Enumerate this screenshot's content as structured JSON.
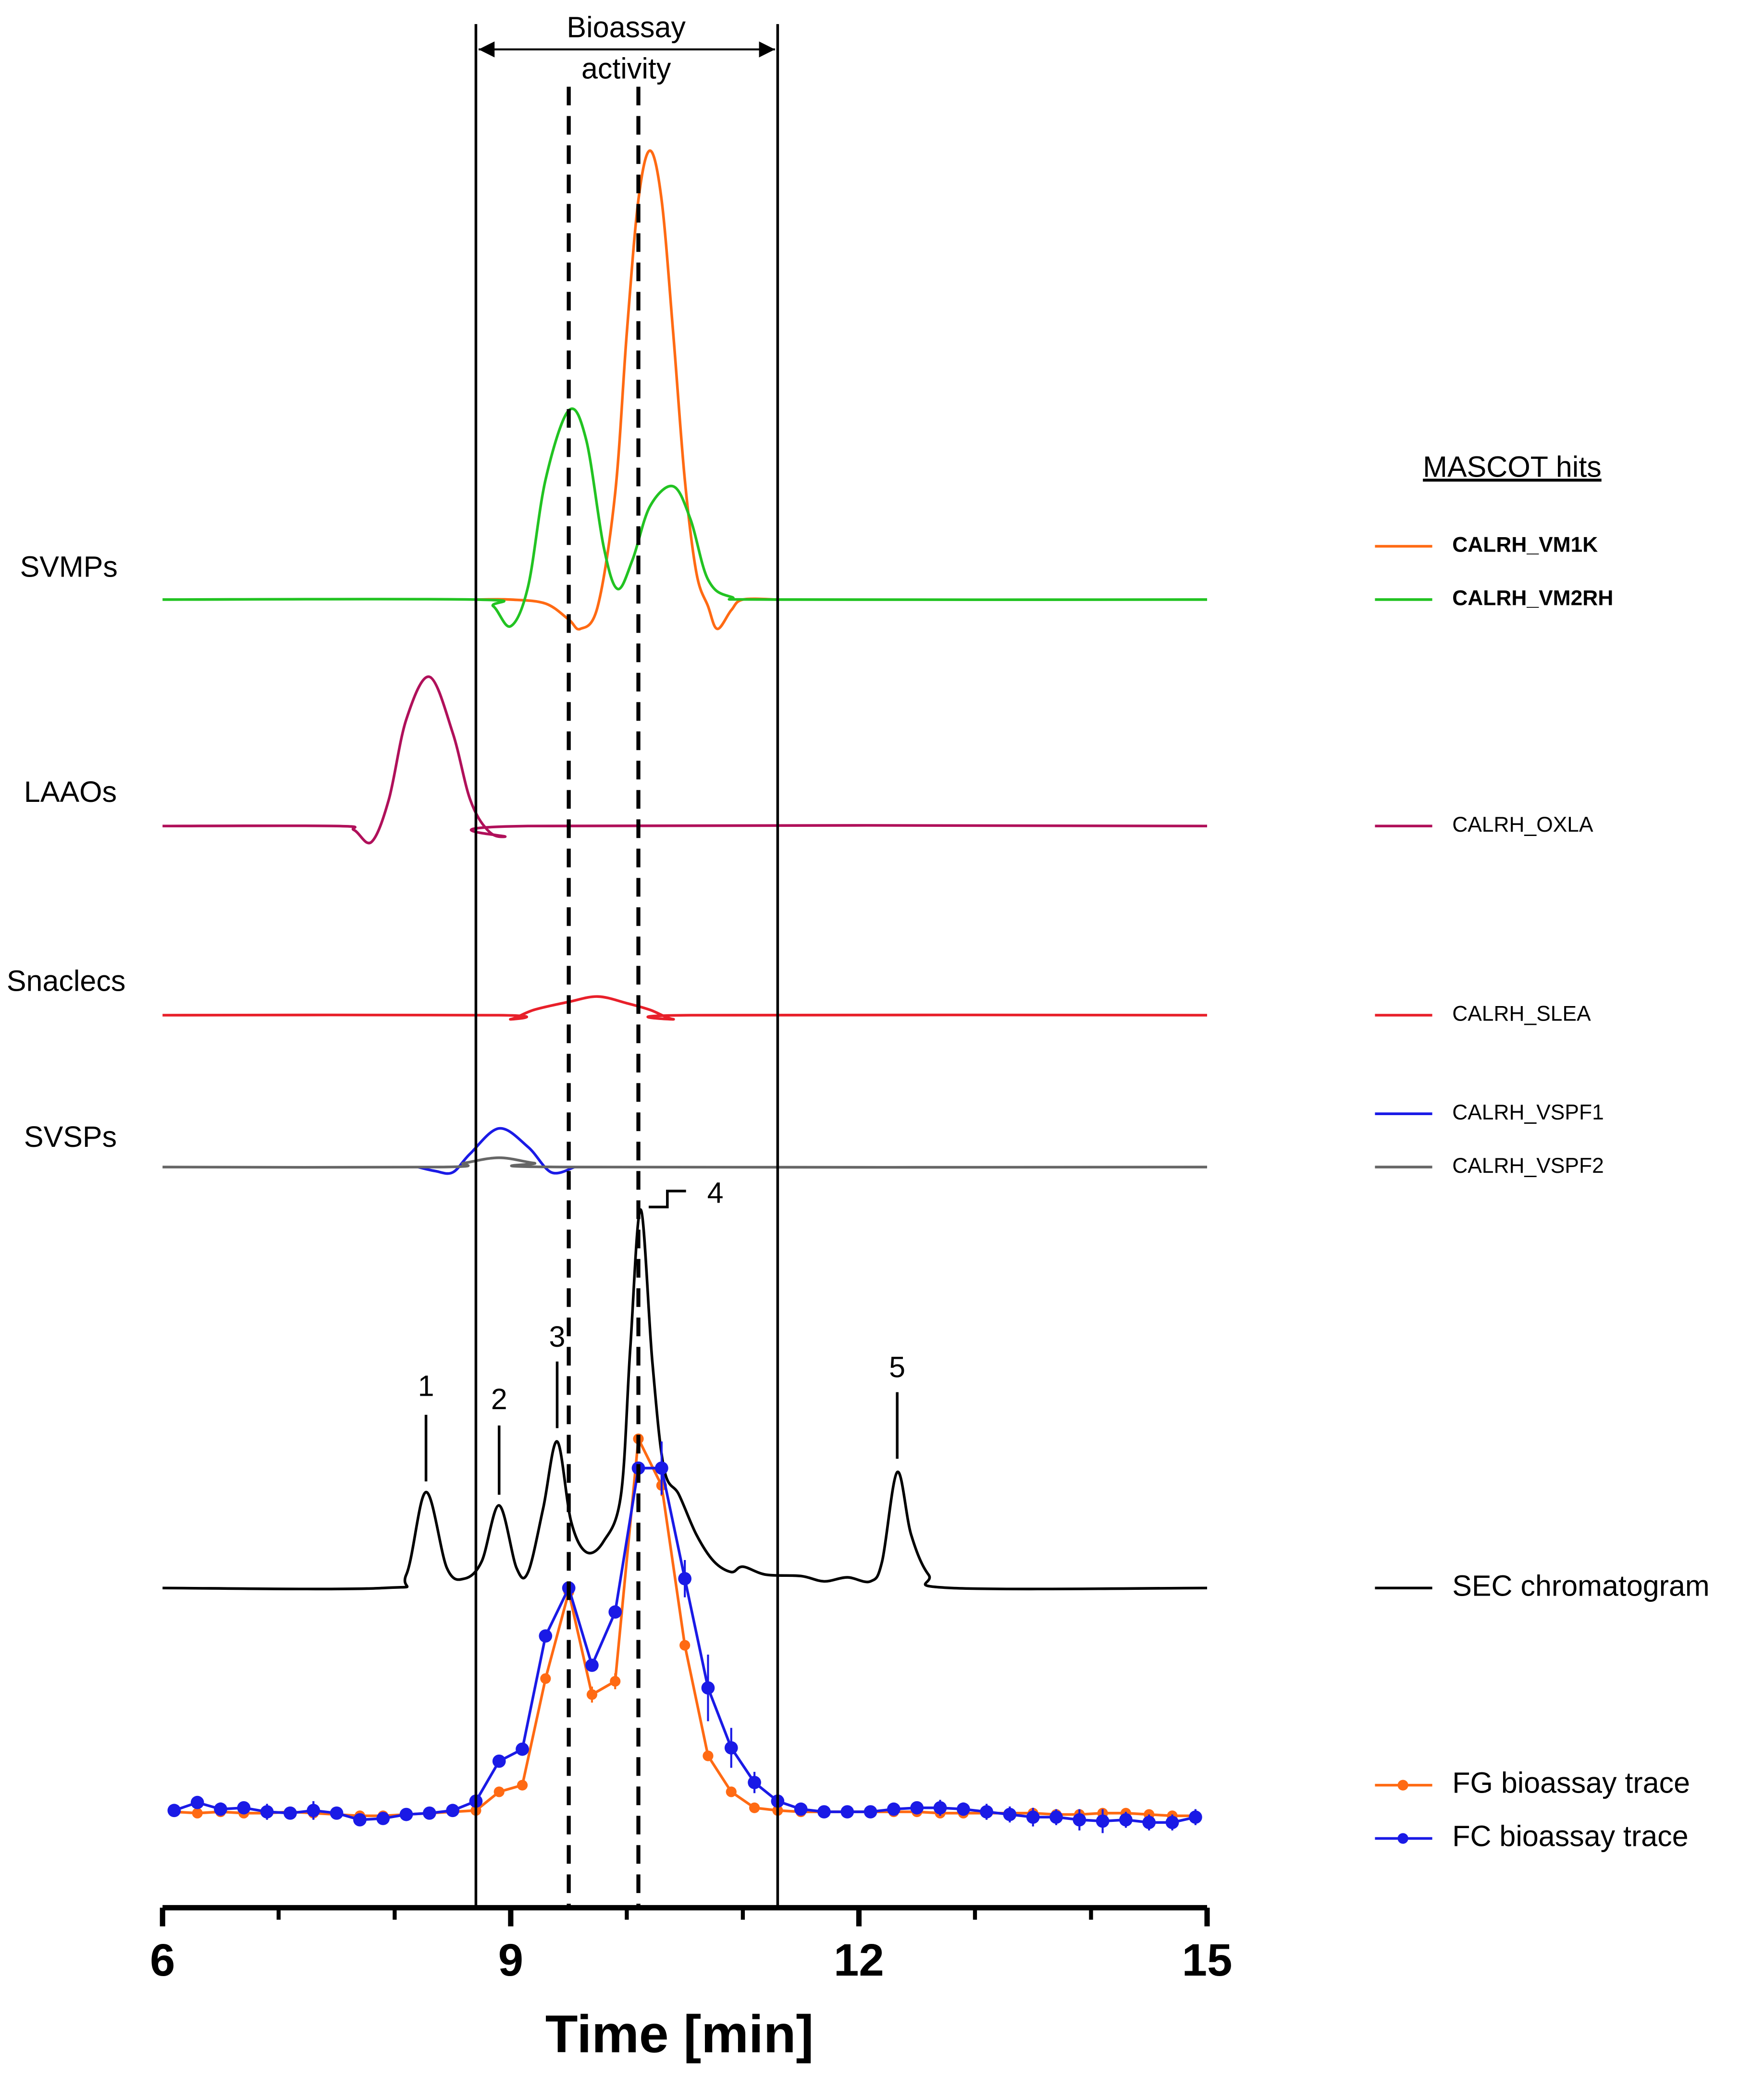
{
  "chart_data": {
    "type": "line",
    "xlabel": "Time [min]",
    "xlim": [
      6,
      15
    ],
    "xticks": [
      6,
      9,
      12,
      15
    ],
    "xminor_ticks": [
      7,
      8,
      10,
      11,
      13,
      14
    ],
    "annotation": [
      "Bioassay",
      "activity"
    ],
    "legend_title": "MASCOT hits",
    "vlines": [
      {
        "x": 8.7,
        "style": "solid"
      },
      {
        "x": 11.3,
        "style": "solid"
      },
      {
        "x": 9.5,
        "style": "dashed"
      },
      {
        "x": 10.1,
        "style": "dashed"
      }
    ],
    "peak_labels": [
      {
        "label": "1",
        "x": 8.27
      },
      {
        "label": "2",
        "x": 8.9
      },
      {
        "label": "3",
        "x": 9.4
      },
      {
        "label": "4",
        "x": 10.12
      },
      {
        "label": "5",
        "x": 12.33
      }
    ],
    "groups": [
      {
        "label": "SVMPs",
        "series": [
          {
            "name": "CALRH_VM1K",
            "color": "#ff6a13",
            "bold": true,
            "x": [
              8.7,
              9.0,
              9.3,
              9.5,
              9.6,
              9.75,
              9.9,
              10.0,
              10.1,
              10.2,
              10.3,
              10.4,
              10.5,
              10.6,
              10.7,
              10.78,
              10.9,
              11.0,
              11.3
            ],
            "values": [
              0,
              0,
              -3,
              -15,
              -22,
              -5,
              80,
              200,
              300,
              337,
              300,
              200,
              90,
              20,
              -5,
              -22,
              -8,
              0,
              0
            ]
          },
          {
            "name": "CALRH_VM2RH",
            "color": "#22c322",
            "bold": true,
            "x": [
              6,
              8.7,
              8.85,
              9.0,
              9.15,
              9.3,
              9.5,
              9.65,
              9.8,
              9.92,
              10.05,
              10.2,
              10.4,
              10.55,
              10.7,
              10.9,
              11.3,
              15
            ],
            "values": [
              0,
              0,
              -5,
              -20,
              10,
              90,
              142,
              120,
              40,
              8,
              30,
              70,
              85,
              60,
              15,
              2,
              0,
              0
            ]
          }
        ]
      },
      {
        "label": "LAAOs",
        "series": [
          {
            "name": "CALRH_OXLA",
            "color": "#b0105a",
            "x": [
              6,
              7.5,
              7.65,
              7.8,
              7.95,
              8.1,
              8.3,
              8.5,
              8.65,
              8.8,
              8.95,
              9.15,
              15
            ],
            "values": [
              0,
              0,
              -3,
              -12,
              20,
              80,
              112,
              70,
              20,
              -3,
              -8,
              0,
              0
            ]
          }
        ]
      },
      {
        "label": "Snaclecs",
        "series": [
          {
            "name": "CALRH_SLEA",
            "color": "#e8202a",
            "x": [
              6,
              8.9,
              9.0,
              9.2,
              9.5,
              9.75,
              10.0,
              10.2,
              10.4,
              10.55,
              15
            ],
            "values": [
              0,
              0,
              -3,
              4,
              10,
              14,
              9,
              4,
              -3,
              0,
              0
            ]
          }
        ]
      },
      {
        "label": "SVSPs",
        "series": [
          {
            "name": "CALRH_VSPF1",
            "color": "#1a1ae6",
            "x": [
              8.2,
              8.35,
              8.5,
              8.65,
              8.9,
              9.15,
              9.35,
              9.55
            ],
            "values": [
              0,
              -3,
              -4,
              10,
              29,
              15,
              -4,
              0
            ]
          },
          {
            "name": "CALRH_VSPF2",
            "color": "#666666",
            "x": [
              6,
              8.4,
              8.6,
              8.9,
              9.2,
              9.5,
              15
            ],
            "values": [
              0,
              0,
              3,
              7,
              3,
              0,
              0
            ]
          }
        ]
      },
      {
        "series": [
          {
            "name": "SEC chromatogram",
            "color": "#000000",
            "x": [
              6,
              7.9,
              8.1,
              8.27,
              8.45,
              8.6,
              8.75,
              8.9,
              9.05,
              9.15,
              9.28,
              9.4,
              9.52,
              9.65,
              9.8,
              9.95,
              10.03,
              10.12,
              10.22,
              10.32,
              10.45,
              10.6,
              10.75,
              10.9,
              11.0,
              11.2,
              11.5,
              11.7,
              11.9,
              12.1,
              12.2,
              12.33,
              12.45,
              12.6,
              12.8,
              15
            ],
            "values": [
              0,
              0,
              10,
              72,
              15,
              7,
              20,
              62,
              15,
              12,
              60,
              110,
              50,
              27,
              35,
              70,
              180,
              284,
              170,
              90,
              70,
              40,
              20,
              12,
              16,
              10,
              9,
              5,
              8,
              5,
              20,
              87,
              40,
              10,
              0,
              0
            ]
          }
        ]
      },
      {
        "x": [
          6.1,
          6.3,
          6.5,
          6.7,
          6.9,
          7.1,
          7.3,
          7.5,
          7.7,
          7.9,
          8.1,
          8.3,
          8.5,
          8.7,
          8.9,
          9.1,
          9.3,
          9.5,
          9.7,
          9.9,
          10.1,
          10.3,
          10.5,
          10.7,
          10.9,
          11.1,
          11.3,
          11.5,
          11.7,
          11.9,
          12.1,
          12.3,
          12.5,
          12.7,
          12.9,
          13.1,
          13.3,
          13.5,
          13.7,
          13.9,
          14.1,
          14.3,
          14.5,
          14.7,
          14.9
        ],
        "series": [
          {
            "name": "FG bioassay trace",
            "color": "#ff6a13",
            "marker": true,
            "values": [
              2,
              1,
              2,
              1,
              1,
              2,
              1,
              0,
              -1,
              -1,
              0,
              1,
              2,
              3,
              17,
              22,
              102,
              167,
              90,
              100,
              282,
              247,
              127,
              44,
              17,
              5,
              3,
              2,
              2,
              2,
              2,
              2,
              2,
              1,
              1,
              1,
              1,
              1,
              0,
              0,
              1,
              1,
              0,
              -1,
              -1
            ],
            "errors": [
              2,
              2,
              2,
              2,
              2,
              2,
              2,
              2,
              2,
              2,
              2,
              2,
              2,
              2,
              2,
              2,
              2,
              2,
              6,
              6,
              2,
              8,
              2,
              2,
              2,
              2,
              2,
              2,
              2,
              2,
              2,
              2,
              2,
              2,
              2,
              2,
              2,
              2,
              2,
              2,
              2,
              2,
              2,
              2,
              2
            ]
          },
          {
            "name": "FC bioassay trace",
            "color": "#1a1ae6",
            "marker": true,
            "values": [
              3,
              9,
              4,
              5,
              2,
              1,
              3,
              1,
              -4,
              -3,
              0,
              1,
              3,
              10,
              40,
              49,
              134,
              170,
              112,
              152,
              260,
              260,
              177,
              95,
              50,
              24,
              10,
              4,
              2,
              2,
              2,
              4,
              5,
              5,
              4,
              2,
              0,
              -2,
              -2,
              -4,
              -5,
              -4,
              -6,
              -6,
              -2
            ],
            "errors": [
              3,
              3,
              5,
              4,
              6,
              3,
              7,
              3,
              3,
              3,
              3,
              3,
              3,
              3,
              3,
              3,
              3,
              3,
              3,
              3,
              4,
              20,
              14,
              25,
              15,
              8,
              4,
              3,
              3,
              3,
              3,
              3,
              3,
              6,
              5,
              6,
              6,
              7,
              6,
              8,
              9,
              6,
              6,
              6,
              6
            ]
          }
        ]
      }
    ]
  }
}
